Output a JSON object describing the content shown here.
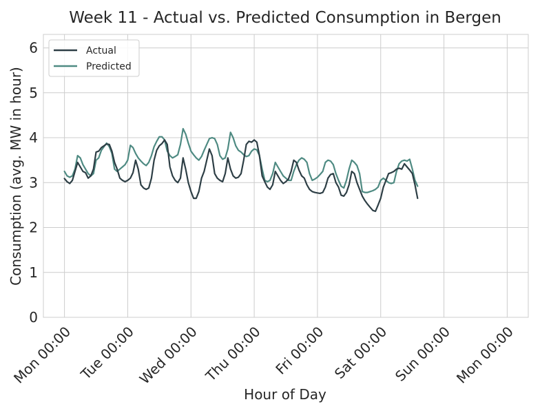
{
  "chart_data": {
    "type": "line",
    "title": "Week 11 - Actual vs. Predicted Consumption in Bergen",
    "xlabel": "Hour of Day",
    "ylabel": "Consumption (avg. MW in hour)",
    "ylim": [
      0,
      6.3
    ],
    "xlim": [
      -8,
      176
    ],
    "y_ticks": [
      0,
      1,
      2,
      3,
      4,
      5,
      6
    ],
    "x_ticks": [
      {
        "hour": 0,
        "label": "Mon 00:00"
      },
      {
        "hour": 24,
        "label": "Tue 00:00"
      },
      {
        "hour": 48,
        "label": "Wed 00:00"
      },
      {
        "hour": 72,
        "label": "Thu 00:00"
      },
      {
        "hour": 96,
        "label": "Fri 00:00"
      },
      {
        "hour": 120,
        "label": "Sat 00:00"
      },
      {
        "hour": 144,
        "label": "Sun 00:00"
      },
      {
        "hour": 168,
        "label": "Mon 00:00"
      }
    ],
    "grid": true,
    "legend_position": "top-left",
    "series": [
      {
        "name": "Actual",
        "color": "#2d3e45",
        "points": [
          [
            0,
            3.09
          ],
          [
            1,
            3.02
          ],
          [
            2,
            2.98
          ],
          [
            3,
            3.05
          ],
          [
            4,
            3.25
          ],
          [
            5,
            3.45
          ],
          [
            6,
            3.35
          ],
          [
            7,
            3.25
          ],
          [
            8,
            3.22
          ],
          [
            9,
            3.1
          ],
          [
            10,
            3.15
          ],
          [
            11,
            3.3
          ],
          [
            12,
            3.68
          ],
          [
            13,
            3.7
          ],
          [
            14,
            3.78
          ],
          [
            15,
            3.82
          ],
          [
            16,
            3.86
          ],
          [
            17,
            3.85
          ],
          [
            18,
            3.7
          ],
          [
            19,
            3.45
          ],
          [
            20,
            3.3
          ],
          [
            21,
            3.1
          ],
          [
            22,
            3.05
          ],
          [
            23,
            3.02
          ],
          [
            24,
            3.05
          ],
          [
            25,
            3.1
          ],
          [
            26,
            3.22
          ],
          [
            27,
            3.5
          ],
          [
            28,
            3.3
          ],
          [
            29,
            2.95
          ],
          [
            30,
            2.88
          ],
          [
            31,
            2.85
          ],
          [
            32,
            2.88
          ],
          [
            33,
            3.1
          ],
          [
            34,
            3.5
          ],
          [
            35,
            3.72
          ],
          [
            36,
            3.82
          ],
          [
            37,
            3.87
          ],
          [
            38,
            3.95
          ],
          [
            39,
            3.85
          ],
          [
            40,
            3.35
          ],
          [
            41,
            3.15
          ],
          [
            42,
            3.05
          ],
          [
            43,
            3.0
          ],
          [
            44,
            3.1
          ],
          [
            45,
            3.55
          ],
          [
            46,
            3.3
          ],
          [
            47,
            3.0
          ],
          [
            48,
            2.8
          ],
          [
            49,
            2.65
          ],
          [
            50,
            2.65
          ],
          [
            51,
            2.8
          ],
          [
            52,
            3.1
          ],
          [
            53,
            3.25
          ],
          [
            54,
            3.5
          ],
          [
            55,
            3.75
          ],
          [
            56,
            3.6
          ],
          [
            57,
            3.2
          ],
          [
            58,
            3.1
          ],
          [
            59,
            3.05
          ],
          [
            60,
            3.02
          ],
          [
            61,
            3.2
          ],
          [
            62,
            3.55
          ],
          [
            63,
            3.3
          ],
          [
            64,
            3.15
          ],
          [
            65,
            3.1
          ],
          [
            66,
            3.12
          ],
          [
            67,
            3.2
          ],
          [
            68,
            3.5
          ],
          [
            69,
            3.85
          ],
          [
            70,
            3.92
          ],
          [
            71,
            3.9
          ],
          [
            72,
            3.95
          ],
          [
            73,
            3.9
          ],
          [
            74,
            3.6
          ],
          [
            75,
            3.15
          ],
          [
            76,
            3.02
          ],
          [
            77,
            2.9
          ],
          [
            78,
            2.85
          ],
          [
            79,
            2.95
          ],
          [
            80,
            3.25
          ],
          [
            81,
            3.15
          ],
          [
            82,
            3.05
          ],
          [
            83,
            2.98
          ],
          [
            84,
            3.02
          ],
          [
            85,
            3.08
          ],
          [
            86,
            3.25
          ],
          [
            87,
            3.5
          ],
          [
            88,
            3.45
          ],
          [
            89,
            3.28
          ],
          [
            90,
            3.15
          ],
          [
            91,
            3.1
          ],
          [
            92,
            2.95
          ],
          [
            93,
            2.85
          ],
          [
            94,
            2.8
          ],
          [
            95,
            2.78
          ],
          [
            96,
            2.77
          ],
          [
            97,
            2.76
          ],
          [
            98,
            2.78
          ],
          [
            99,
            2.9
          ],
          [
            100,
            3.1
          ],
          [
            101,
            3.18
          ],
          [
            102,
            3.2
          ],
          [
            103,
            3.0
          ],
          [
            104,
            2.9
          ],
          [
            105,
            2.72
          ],
          [
            106,
            2.7
          ],
          [
            107,
            2.78
          ],
          [
            108,
            2.95
          ],
          [
            109,
            3.25
          ],
          [
            110,
            3.2
          ],
          [
            111,
            3.0
          ],
          [
            112,
            2.85
          ],
          [
            113,
            2.7
          ],
          [
            114,
            2.6
          ],
          [
            115,
            2.52
          ],
          [
            116,
            2.45
          ],
          [
            117,
            2.38
          ],
          [
            118,
            2.36
          ],
          [
            119,
            2.5
          ],
          [
            120,
            2.65
          ],
          [
            121,
            2.9
          ],
          [
            122,
            3.05
          ],
          [
            123,
            3.2
          ],
          [
            124,
            3.22
          ],
          [
            125,
            3.25
          ],
          [
            126,
            3.3
          ],
          [
            127,
            3.32
          ],
          [
            128,
            3.3
          ],
          [
            129,
            3.42
          ],
          [
            130,
            3.35
          ],
          [
            131,
            3.28
          ],
          [
            132,
            3.2
          ],
          [
            133,
            2.95
          ],
          [
            134,
            2.65
          ]
        ]
      },
      {
        "name": "Predicted",
        "color": "#4e8a82",
        "points": [
          [
            0,
            3.25
          ],
          [
            1,
            3.15
          ],
          [
            2,
            3.12
          ],
          [
            3,
            3.15
          ],
          [
            4,
            3.3
          ],
          [
            5,
            3.6
          ],
          [
            6,
            3.55
          ],
          [
            7,
            3.4
          ],
          [
            8,
            3.3
          ],
          [
            9,
            3.2
          ],
          [
            10,
            3.15
          ],
          [
            11,
            3.2
          ],
          [
            12,
            3.5
          ],
          [
            13,
            3.55
          ],
          [
            14,
            3.72
          ],
          [
            15,
            3.8
          ],
          [
            16,
            3.88
          ],
          [
            17,
            3.8
          ],
          [
            18,
            3.65
          ],
          [
            19,
            3.3
          ],
          [
            20,
            3.25
          ],
          [
            21,
            3.3
          ],
          [
            22,
            3.35
          ],
          [
            23,
            3.4
          ],
          [
            24,
            3.5
          ],
          [
            25,
            3.83
          ],
          [
            26,
            3.78
          ],
          [
            27,
            3.65
          ],
          [
            28,
            3.55
          ],
          [
            29,
            3.48
          ],
          [
            30,
            3.42
          ],
          [
            31,
            3.38
          ],
          [
            32,
            3.45
          ],
          [
            33,
            3.6
          ],
          [
            34,
            3.8
          ],
          [
            35,
            3.92
          ],
          [
            36,
            4.02
          ],
          [
            37,
            4.02
          ],
          [
            38,
            3.95
          ],
          [
            39,
            3.7
          ],
          [
            40,
            3.6
          ],
          [
            41,
            3.55
          ],
          [
            42,
            3.58
          ],
          [
            43,
            3.62
          ],
          [
            44,
            3.85
          ],
          [
            45,
            4.2
          ],
          [
            46,
            4.08
          ],
          [
            47,
            3.88
          ],
          [
            48,
            3.7
          ],
          [
            49,
            3.62
          ],
          [
            50,
            3.55
          ],
          [
            51,
            3.5
          ],
          [
            52,
            3.58
          ],
          [
            53,
            3.72
          ],
          [
            54,
            3.85
          ],
          [
            55,
            3.98
          ],
          [
            56,
            4.0
          ],
          [
            57,
            3.98
          ],
          [
            58,
            3.85
          ],
          [
            59,
            3.6
          ],
          [
            60,
            3.52
          ],
          [
            61,
            3.55
          ],
          [
            62,
            3.75
          ],
          [
            63,
            4.12
          ],
          [
            64,
            4.0
          ],
          [
            65,
            3.82
          ],
          [
            66,
            3.72
          ],
          [
            67,
            3.68
          ],
          [
            68,
            3.62
          ],
          [
            69,
            3.58
          ],
          [
            70,
            3.6
          ],
          [
            71,
            3.7
          ],
          [
            72,
            3.75
          ],
          [
            73,
            3.73
          ],
          [
            74,
            3.6
          ],
          [
            75,
            3.3
          ],
          [
            76,
            3.05
          ],
          [
            77,
            3.02
          ],
          [
            78,
            3.05
          ],
          [
            79,
            3.2
          ],
          [
            80,
            3.45
          ],
          [
            81,
            3.35
          ],
          [
            82,
            3.25
          ],
          [
            83,
            3.15
          ],
          [
            84,
            3.1
          ],
          [
            85,
            3.05
          ],
          [
            86,
            3.05
          ],
          [
            87,
            3.25
          ],
          [
            88,
            3.4
          ],
          [
            89,
            3.5
          ],
          [
            90,
            3.55
          ],
          [
            91,
            3.52
          ],
          [
            92,
            3.45
          ],
          [
            93,
            3.2
          ],
          [
            94,
            3.05
          ],
          [
            95,
            3.08
          ],
          [
            96,
            3.12
          ],
          [
            97,
            3.18
          ],
          [
            98,
            3.25
          ],
          [
            99,
            3.45
          ],
          [
            100,
            3.5
          ],
          [
            101,
            3.48
          ],
          [
            102,
            3.4
          ],
          [
            103,
            3.2
          ],
          [
            104,
            3.05
          ],
          [
            105,
            2.92
          ],
          [
            106,
            2.88
          ],
          [
            107,
            3.05
          ],
          [
            108,
            3.3
          ],
          [
            109,
            3.5
          ],
          [
            110,
            3.45
          ],
          [
            111,
            3.38
          ],
          [
            112,
            3.2
          ],
          [
            113,
            2.8
          ],
          [
            114,
            2.78
          ],
          [
            115,
            2.78
          ],
          [
            116,
            2.8
          ],
          [
            117,
            2.82
          ],
          [
            118,
            2.85
          ],
          [
            119,
            2.9
          ],
          [
            120,
            3.05
          ],
          [
            121,
            3.1
          ],
          [
            122,
            3.05
          ],
          [
            123,
            3.0
          ],
          [
            124,
            2.98
          ],
          [
            125,
            3.0
          ],
          [
            126,
            3.25
          ],
          [
            127,
            3.42
          ],
          [
            128,
            3.48
          ],
          [
            129,
            3.5
          ],
          [
            130,
            3.48
          ],
          [
            131,
            3.52
          ],
          [
            132,
            3.3
          ],
          [
            133,
            3.05
          ],
          [
            134,
            2.92
          ]
        ]
      }
    ]
  }
}
